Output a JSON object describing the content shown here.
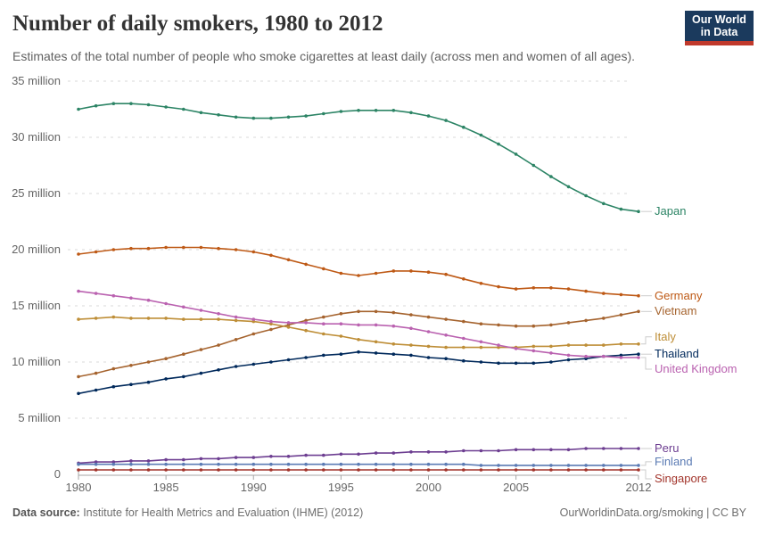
{
  "header": {
    "title": "Number of daily smokers, 1980 to 2012",
    "subtitle": "Estimates of the total number of people who smoke cigarettes at least daily (across men and women of all ages).",
    "logo": {
      "line1": "Our World",
      "line2": "in Data",
      "bg_color": "#1b3a5d",
      "accent_color": "#c0392b"
    }
  },
  "footer": {
    "source_label": "Data source:",
    "source_text": " Institute for Health Metrics and Evaluation (IHME) (2012)",
    "right_text": "OurWorldinData.org/smoking | CC BY"
  },
  "chart_data": {
    "type": "line",
    "title": "Number of daily smokers, 1980 to 2012",
    "xlabel": "",
    "ylabel": "",
    "unit": "million people",
    "xlim": [
      1980,
      2012
    ],
    "ylim": [
      0,
      35
    ],
    "grid": "horizontal-dashed",
    "legend_position": "right-of-line-ends",
    "x": [
      1980,
      1981,
      1982,
      1983,
      1984,
      1985,
      1986,
      1987,
      1988,
      1989,
      1990,
      1991,
      1992,
      1993,
      1994,
      1995,
      1996,
      1997,
      1998,
      1999,
      2000,
      2001,
      2002,
      2003,
      2004,
      2005,
      2006,
      2007,
      2008,
      2009,
      2010,
      2011,
      2012
    ],
    "x_tick_years": [
      1980,
      1985,
      1990,
      1995,
      2000,
      2005,
      2012
    ],
    "x_tick_labels": [
      "1980",
      "1985",
      "1990",
      "1995",
      "2000",
      "2005",
      "2012"
    ],
    "y_ticks": [
      0,
      5,
      10,
      15,
      20,
      25,
      30,
      35
    ],
    "y_tick_labels": [
      "0",
      "5 million",
      "10 million",
      "15 million",
      "20 million",
      "25 million",
      "30 million",
      "35 million"
    ],
    "series": [
      {
        "name": "Japan",
        "color": "#2C8465",
        "values": [
          32.5,
          32.8,
          33.0,
          33.0,
          32.9,
          32.7,
          32.5,
          32.2,
          32.0,
          31.8,
          31.7,
          31.7,
          31.8,
          31.9,
          32.1,
          32.3,
          32.4,
          32.4,
          32.4,
          32.2,
          31.9,
          31.5,
          30.9,
          30.2,
          29.4,
          28.5,
          27.5,
          26.5,
          25.6,
          24.8,
          24.1,
          23.6,
          23.4
        ]
      },
      {
        "name": "Germany",
        "color": "#BE5915",
        "values": [
          19.6,
          19.8,
          20.0,
          20.1,
          20.1,
          20.2,
          20.2,
          20.2,
          20.1,
          20.0,
          19.8,
          19.5,
          19.1,
          18.7,
          18.3,
          17.9,
          17.7,
          17.9,
          18.1,
          18.1,
          18.0,
          17.8,
          17.4,
          17.0,
          16.7,
          16.5,
          16.6,
          16.6,
          16.5,
          16.3,
          16.1,
          16.0,
          15.9
        ]
      },
      {
        "name": "Vietnam",
        "color": "#A5632E",
        "values": [
          8.7,
          9.0,
          9.4,
          9.7,
          10.0,
          10.3,
          10.7,
          11.1,
          11.5,
          12.0,
          12.5,
          12.9,
          13.3,
          13.7,
          14.0,
          14.3,
          14.5,
          14.5,
          14.4,
          14.2,
          14.0,
          13.8,
          13.6,
          13.4,
          13.3,
          13.2,
          13.2,
          13.3,
          13.5,
          13.7,
          13.9,
          14.2,
          14.5
        ]
      },
      {
        "name": "Italy",
        "color": "#BE8E37",
        "values": [
          13.8,
          13.9,
          14.0,
          13.9,
          13.9,
          13.9,
          13.8,
          13.8,
          13.8,
          13.7,
          13.6,
          13.4,
          13.1,
          12.8,
          12.5,
          12.3,
          12.0,
          11.8,
          11.6,
          11.5,
          11.4,
          11.3,
          11.3,
          11.3,
          11.3,
          11.3,
          11.4,
          11.4,
          11.5,
          11.5,
          11.5,
          11.6,
          11.6
        ]
      },
      {
        "name": "Thailand",
        "color": "#00295B",
        "values": [
          7.2,
          7.5,
          7.8,
          8.0,
          8.2,
          8.5,
          8.7,
          9.0,
          9.3,
          9.6,
          9.8,
          10.0,
          10.2,
          10.4,
          10.6,
          10.7,
          10.9,
          10.8,
          10.7,
          10.6,
          10.4,
          10.3,
          10.1,
          10.0,
          9.9,
          9.9,
          9.9,
          10.0,
          10.2,
          10.3,
          10.5,
          10.6,
          10.7
        ]
      },
      {
        "name": "United Kingdom",
        "color": "#BA62B0",
        "values": [
          16.3,
          16.1,
          15.9,
          15.7,
          15.5,
          15.2,
          14.9,
          14.6,
          14.3,
          14.0,
          13.8,
          13.6,
          13.5,
          13.5,
          13.4,
          13.4,
          13.3,
          13.3,
          13.2,
          13.0,
          12.7,
          12.4,
          12.1,
          11.8,
          11.5,
          11.2,
          11.0,
          10.8,
          10.6,
          10.5,
          10.5,
          10.4,
          10.4
        ]
      },
      {
        "name": "Peru",
        "color": "#6D3E91",
        "values": [
          1.0,
          1.1,
          1.1,
          1.2,
          1.2,
          1.3,
          1.3,
          1.4,
          1.4,
          1.5,
          1.5,
          1.6,
          1.6,
          1.7,
          1.7,
          1.8,
          1.8,
          1.9,
          1.9,
          2.0,
          2.0,
          2.0,
          2.1,
          2.1,
          2.1,
          2.2,
          2.2,
          2.2,
          2.2,
          2.3,
          2.3,
          2.3,
          2.3
        ]
      },
      {
        "name": "Finland",
        "color": "#5B7BB4",
        "values": [
          0.9,
          0.9,
          0.9,
          0.9,
          0.9,
          0.9,
          0.9,
          0.9,
          0.9,
          0.9,
          0.9,
          0.9,
          0.9,
          0.9,
          0.9,
          0.9,
          0.9,
          0.9,
          0.9,
          0.9,
          0.9,
          0.9,
          0.9,
          0.8,
          0.8,
          0.8,
          0.8,
          0.8,
          0.8,
          0.8,
          0.8,
          0.8,
          0.8
        ]
      },
      {
        "name": "Singapore",
        "color": "#A2342B",
        "values": [
          0.4,
          0.4,
          0.4,
          0.4,
          0.4,
          0.4,
          0.4,
          0.4,
          0.4,
          0.4,
          0.4,
          0.4,
          0.4,
          0.4,
          0.4,
          0.4,
          0.4,
          0.4,
          0.4,
          0.4,
          0.4,
          0.4,
          0.4,
          0.4,
          0.4,
          0.4,
          0.4,
          0.4,
          0.4,
          0.4,
          0.4,
          0.4,
          0.4
        ]
      }
    ]
  }
}
